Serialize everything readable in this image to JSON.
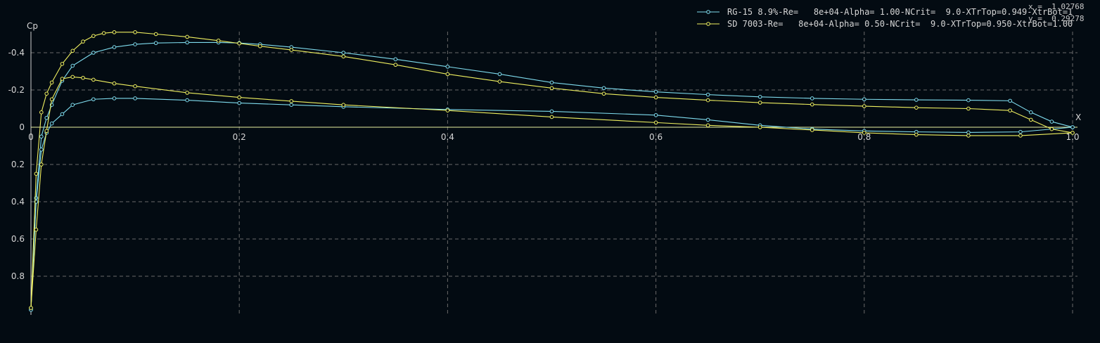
{
  "chart_data": {
    "type": "line",
    "xlabel": "X",
    "ylabel": "Cp",
    "xlim": [
      0.0,
      1.0
    ],
    "ylim_display": [
      -0.5,
      1.0
    ],
    "y_axis_inverted": true,
    "grid": true,
    "legend_placement": "top-right",
    "x_ticks": [
      "0",
      "0.2",
      "0.4",
      "0.6",
      "0.8",
      "1.0"
    ],
    "y_ticks": [
      "-0.4",
      "-0.2",
      "0",
      "0.2",
      "0.4",
      "0.6",
      "0.8"
    ],
    "cursor": {
      "x": "x =  1.02768",
      "y": "y =  0.29278"
    },
    "series": [
      {
        "name": "RG-15 8.9%-Re=   8e+04-Alpha= 1.00-NCrit=  9.0-XTrTop=0.949-XtrBot=1",
        "color": "#7fdcee",
        "upper": {
          "x": [
            0.0,
            0.005,
            0.01,
            0.015,
            0.02,
            0.03,
            0.04,
            0.06,
            0.08,
            0.1,
            0.12,
            0.15,
            0.18,
            0.2,
            0.22,
            0.25,
            0.3,
            0.35,
            0.4,
            0.45,
            0.5,
            0.55,
            0.6,
            0.65,
            0.7,
            0.75,
            0.8,
            0.85,
            0.9,
            0.94,
            0.96,
            0.98,
            1.0
          ],
          "y": [
            0.98,
            0.38,
            0.05,
            -0.05,
            -0.12,
            -0.25,
            -0.33,
            -0.4,
            -0.43,
            -0.445,
            -0.452,
            -0.455,
            -0.455,
            -0.452,
            -0.445,
            -0.43,
            -0.4,
            -0.365,
            -0.325,
            -0.285,
            -0.24,
            -0.21,
            -0.19,
            -0.175,
            -0.163,
            -0.155,
            -0.15,
            -0.147,
            -0.145,
            -0.142,
            -0.08,
            -0.03,
            0.0
          ]
        },
        "lower": {
          "x": [
            0.0,
            0.005,
            0.01,
            0.015,
            0.02,
            0.03,
            0.04,
            0.06,
            0.08,
            0.1,
            0.15,
            0.2,
            0.25,
            0.3,
            0.4,
            0.5,
            0.6,
            0.65,
            0.7,
            0.75,
            0.8,
            0.85,
            0.9,
            0.95,
            1.0
          ],
          "y": [
            0.98,
            0.4,
            0.12,
            0.03,
            -0.02,
            -0.07,
            -0.12,
            -0.15,
            -0.155,
            -0.155,
            -0.145,
            -0.13,
            -0.12,
            -0.11,
            -0.095,
            -0.085,
            -0.065,
            -0.04,
            -0.01,
            0.01,
            0.02,
            0.025,
            0.028,
            0.025,
            0.0
          ]
        }
      },
      {
        "name": "SD 7003-Re=   8e+04-Alpha= 0.50-NCrit=  9.0-XTrTop=0.950-XtrBot=1.00",
        "color": "#f0f060",
        "upper": {
          "x": [
            0.0,
            0.005,
            0.01,
            0.015,
            0.02,
            0.03,
            0.04,
            0.05,
            0.06,
            0.07,
            0.08,
            0.1,
            0.12,
            0.15,
            0.18,
            0.2,
            0.22,
            0.25,
            0.3,
            0.35,
            0.4,
            0.45,
            0.5,
            0.55,
            0.6,
            0.65,
            0.7,
            0.75,
            0.8,
            0.85,
            0.9,
            0.94,
            0.96,
            0.98,
            1.0
          ],
          "y": [
            0.97,
            0.25,
            -0.08,
            -0.18,
            -0.24,
            -0.34,
            -0.41,
            -0.46,
            -0.49,
            -0.505,
            -0.51,
            -0.51,
            -0.5,
            -0.485,
            -0.465,
            -0.45,
            -0.435,
            -0.415,
            -0.38,
            -0.335,
            -0.285,
            -0.245,
            -0.21,
            -0.18,
            -0.16,
            -0.145,
            -0.132,
            -0.122,
            -0.113,
            -0.105,
            -0.1,
            -0.09,
            -0.04,
            0.01,
            0.03
          ]
        },
        "lower": {
          "x": [
            0.0,
            0.005,
            0.01,
            0.015,
            0.02,
            0.03,
            0.04,
            0.05,
            0.06,
            0.08,
            0.1,
            0.15,
            0.2,
            0.25,
            0.3,
            0.4,
            0.5,
            0.6,
            0.65,
            0.7,
            0.75,
            0.8,
            0.85,
            0.9,
            0.95,
            1.0
          ],
          "y": [
            0.97,
            0.55,
            0.2,
            0.02,
            -0.15,
            -0.26,
            -0.27,
            -0.265,
            -0.255,
            -0.235,
            -0.22,
            -0.185,
            -0.16,
            -0.14,
            -0.12,
            -0.09,
            -0.055,
            -0.025,
            -0.01,
            0.0,
            0.015,
            0.03,
            0.04,
            0.045,
            0.045,
            0.03
          ]
        }
      }
    ]
  }
}
